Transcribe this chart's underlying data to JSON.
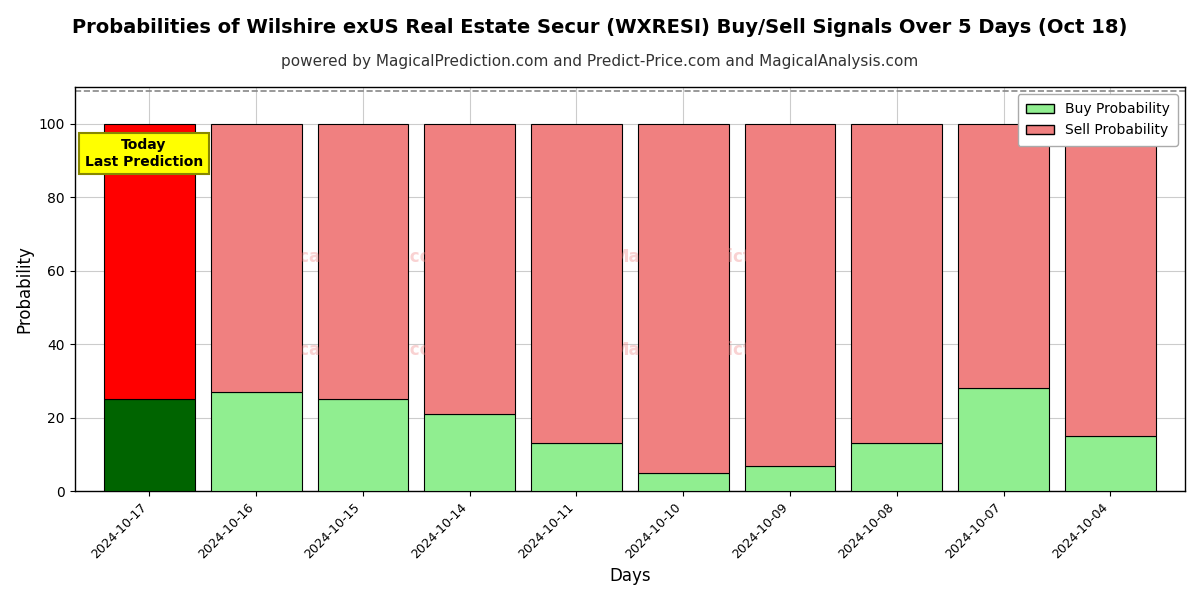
{
  "title": "Probabilities of Wilshire exUS Real Estate Secur (WXRESI) Buy/Sell Signals Over 5 Days (Oct 18)",
  "subtitle": "powered by MagicalPrediction.com and Predict-Price.com and MagicalAnalysis.com",
  "xlabel": "Days",
  "ylabel": "Probability",
  "days": [
    "2024-10-17",
    "2024-10-16",
    "2024-10-15",
    "2024-10-14",
    "2024-10-11",
    "2024-10-10",
    "2024-10-09",
    "2024-10-08",
    "2024-10-07",
    "2024-10-04"
  ],
  "buy_probs": [
    25,
    27,
    25,
    21,
    13,
    5,
    7,
    13,
    28,
    15
  ],
  "sell_probs": [
    75,
    73,
    75,
    79,
    87,
    95,
    93,
    87,
    72,
    85
  ],
  "today_bar_buy_color": "#006400",
  "today_bar_sell_color": "#FF0000",
  "other_bar_buy_color": "#90EE90",
  "other_bar_sell_color": "#F08080",
  "bar_edge_color": "#000000",
  "today_annotation_bg": "#FFFF00",
  "today_annotation_text": "Today\nLast Prediction",
  "ylim": [
    0,
    110
  ],
  "yticks": [
    0,
    20,
    40,
    60,
    80,
    100
  ],
  "dashed_line_y": 109,
  "dashed_line_color": "#888888",
  "grid_color": "#cccccc",
  "watermark_color": "#F08080",
  "watermark_alpha": 0.35,
  "legend_buy_label": "Buy Probability",
  "legend_sell_label": "Sell Probability",
  "title_fontsize": 14,
  "subtitle_fontsize": 11,
  "bar_width": 0.85
}
